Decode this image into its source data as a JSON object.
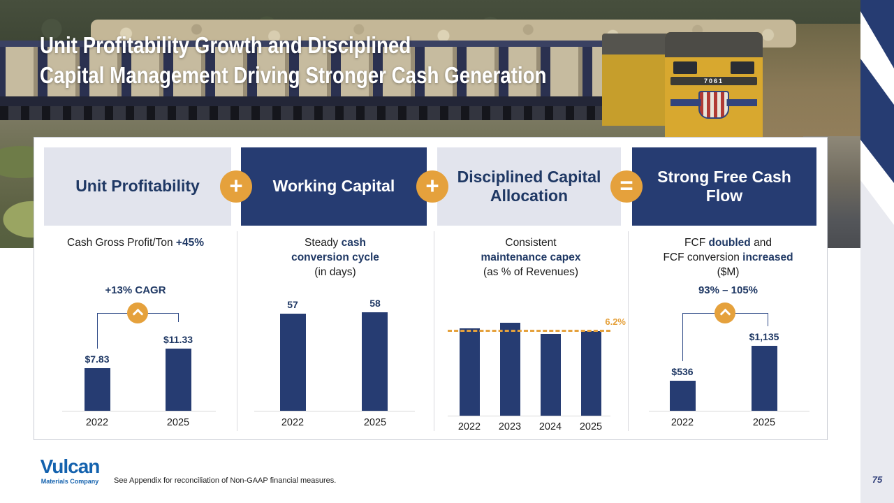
{
  "slide": {
    "title_line1": "Unit Profitability Growth and Disciplined",
    "title_line2": "Capital Management Driving Stronger Cash Generation"
  },
  "colors": {
    "navy": "#263c72",
    "navy_text": "#1f3864",
    "orange": "#e5a13c",
    "light_block": "#e2e4ed",
    "strip_gray": "#e9eaf0",
    "vulcan_blue": "#1462ae"
  },
  "photo": {
    "train_number": "7061"
  },
  "flow_header": {
    "blocks": [
      {
        "label": "Unit Profitability"
      },
      {
        "label": "Working Capital"
      },
      {
        "label": "Disciplined Capital Allocation"
      },
      {
        "label": "Strong Free Cash Flow"
      }
    ],
    "operators": [
      "+",
      "+",
      "="
    ]
  },
  "panels": [
    {
      "headline": [
        {
          "t": "Cash Gross Profit/Ton "
        },
        {
          "t": "+45%"
        }
      ]
    },
    {
      "headline": [
        {
          "t": "Steady "
        },
        {
          "t": "cash"
        },
        {
          "t": "conversion cycle"
        },
        {
          "t": "(in days)"
        }
      ]
    },
    {
      "headline": [
        {
          "t": "Consistent"
        },
        {
          "t": "maintenance capex"
        },
        {
          "t": "(as % of Revenues)"
        }
      ]
    },
    {
      "headline": [
        {
          "t": "FCF "
        },
        {
          "t": "doubled"
        },
        {
          "t": " and"
        },
        {
          "t": "FCF conversion "
        },
        {
          "t": "increased"
        },
        {
          "t": "($M)"
        }
      ]
    }
  ],
  "chart_data": [
    {
      "type": "bar",
      "title": "Cash Gross Profit/Ton +45%",
      "categories": [
        "2022",
        "2025"
      ],
      "values": [
        7.83,
        11.33
      ],
      "value_labels": [
        "$7.83",
        "$11.33"
      ],
      "annotation": "+13% CAGR"
    },
    {
      "type": "bar",
      "title": "Steady cash conversion cycle (in days)",
      "categories": [
        "2022",
        "2025"
      ],
      "values": [
        57,
        58
      ],
      "value_labels": [
        "57",
        "58"
      ]
    },
    {
      "type": "bar",
      "title": "Consistent maintenance capex (as % of Revenues)",
      "categories": [
        "2022",
        "2023",
        "2024",
        "2025"
      ],
      "values": [
        6.4,
        6.8,
        6.0,
        6.2
      ],
      "reference_line": {
        "value": 6.2,
        "label": "6.2%",
        "style": "dashed-orange"
      }
    },
    {
      "type": "bar",
      "title": "FCF doubled and FCF conversion increased ($M)",
      "categories": [
        "2022",
        "2025"
      ],
      "values": [
        536,
        1135
      ],
      "value_labels": [
        "$536",
        "$1,135"
      ],
      "annotation": "93% – 105%"
    }
  ],
  "footer": {
    "logo_word": "Vulcan",
    "logo_sub": "Materials Company",
    "note": "See Appendix for reconciliation of Non-GAAP financial measures.",
    "page_number": "75"
  }
}
